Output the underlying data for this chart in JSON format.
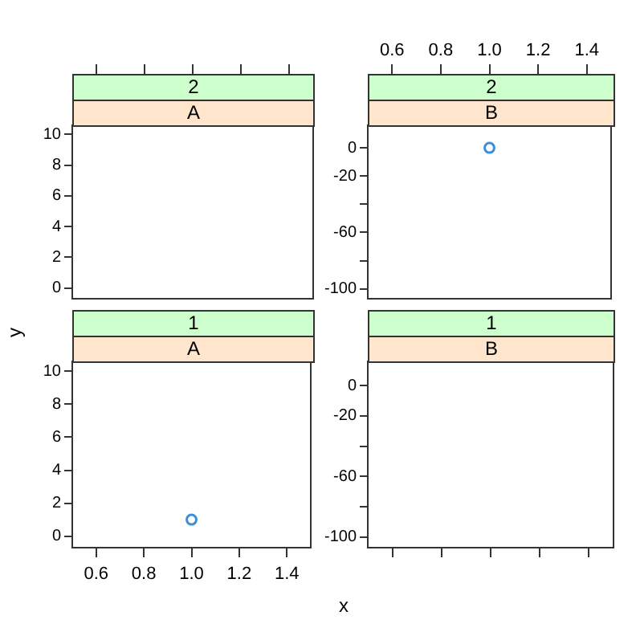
{
  "chart_data": [
    {
      "type": "scatter",
      "title": "2",
      "subtitle": "A",
      "color": "#3d8fd9",
      "marker": "circle",
      "xlim": [
        0.5,
        1.5
      ],
      "xticks": [
        0.6,
        0.8,
        1.0,
        1.2,
        1.4
      ],
      "ylim": [
        -0.7,
        10.6
      ],
      "yticks": [
        0,
        2,
        4,
        6,
        8,
        10
      ],
      "tick_labels": "y"
    },
    {
      "type": "scatter",
      "title": "2",
      "subtitle": "B",
      "x": [
        1.0
      ],
      "values": [
        0
      ],
      "color": "#3d8fd9",
      "marker": "circle",
      "xlim": [
        0.5,
        1.5
      ],
      "xticks": [
        0.6,
        0.8,
        {
          "value": 1.0,
          "label": "1.0"
        },
        1.2,
        1.4
      ],
      "ylim": [
        -107,
        16
      ],
      "yticks": [
        0,
        -20,
        -60,
        -100
      ]
    },
    {
      "type": "scatter",
      "title": "1",
      "subtitle": "A",
      "xlabel": "x",
      "ylabel": "y",
      "x": [
        1.0
      ],
      "values": [
        1
      ],
      "color": "#3d8fd9",
      "marker": "circle",
      "xlim": [
        0.5,
        1.5
      ],
      "xticks": [
        0.6,
        0.8,
        {
          "value": 1.0,
          "label": "1.0"
        },
        1.2,
        1.4
      ],
      "ylim": [
        -0.7,
        10.6
      ],
      "yticks": [
        0,
        2,
        4,
        6,
        8,
        10
      ]
    },
    {
      "type": "scatter",
      "title": "1",
      "subtitle": "B",
      "color": "#3d8fd9",
      "marker": "circle",
      "xlim": [
        0.5,
        1.5
      ],
      "xticks": [
        0.6,
        0.8,
        1.0,
        1.2,
        1.4
      ],
      "ylim": [
        -107,
        16
      ],
      "yticks": [
        0,
        -20,
        -60,
        -100
      ],
      "tick_labels": "y"
    }
  ]
}
